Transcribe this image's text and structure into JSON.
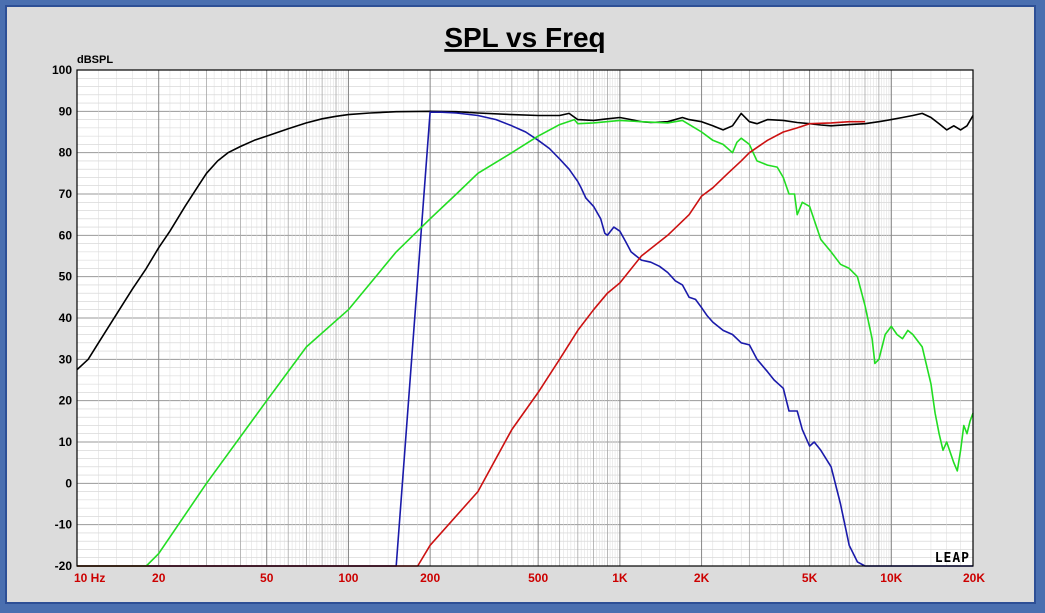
{
  "chart_data": {
    "type": "line",
    "title": "SPL vs Freq",
    "ylabel": "dBSPL",
    "xlabel": "",
    "x_scale": "log",
    "xlim": [
      10,
      20000
    ],
    "ylim": [
      -20,
      100
    ],
    "grid": true,
    "watermark": "LEAP",
    "y_ticks": [
      {
        "value": 100,
        "label": "100"
      },
      {
        "value": 90,
        "label": "90"
      },
      {
        "value": 80,
        "label": "80"
      },
      {
        "value": 70,
        "label": "70"
      },
      {
        "value": 60,
        "label": "60"
      },
      {
        "value": 50,
        "label": "50"
      },
      {
        "value": 40,
        "label": "40"
      },
      {
        "value": 30,
        "label": "30"
      },
      {
        "value": 20,
        "label": "20"
      },
      {
        "value": 10,
        "label": "10"
      },
      {
        "value": 0,
        "label": "0"
      },
      {
        "value": -10,
        "label": "-10"
      },
      {
        "value": -20,
        "label": "-20"
      }
    ],
    "x_ticks": [
      {
        "value": 10,
        "label": "10 Hz"
      },
      {
        "value": 20,
        "label": "20"
      },
      {
        "value": 50,
        "label": "50"
      },
      {
        "value": 100,
        "label": "100"
      },
      {
        "value": 200,
        "label": "200"
      },
      {
        "value": 500,
        "label": "500"
      },
      {
        "value": 1000,
        "label": "1K"
      },
      {
        "value": 2000,
        "label": "2K"
      },
      {
        "value": 5000,
        "label": "5K"
      },
      {
        "value": 10000,
        "label": "10K"
      },
      {
        "value": 20000,
        "label": "20K"
      }
    ],
    "series": [
      {
        "color": "#000000",
        "points": [
          [
            10,
            27.5
          ],
          [
            11,
            30
          ],
          [
            12,
            34
          ],
          [
            14,
            41
          ],
          [
            16,
            47
          ],
          [
            18,
            52
          ],
          [
            20,
            57
          ],
          [
            22,
            61
          ],
          [
            25,
            67
          ],
          [
            28,
            72
          ],
          [
            30,
            75
          ],
          [
            33,
            78
          ],
          [
            36,
            80
          ],
          [
            40,
            81.5
          ],
          [
            45,
            83
          ],
          [
            50,
            84
          ],
          [
            60,
            85.8
          ],
          [
            70,
            87.2
          ],
          [
            80,
            88.2
          ],
          [
            90,
            88.8
          ],
          [
            100,
            89.2
          ],
          [
            120,
            89.6
          ],
          [
            150,
            89.9
          ],
          [
            200,
            90
          ],
          [
            250,
            89.9
          ],
          [
            300,
            89.6
          ],
          [
            400,
            89.2
          ],
          [
            500,
            89
          ],
          [
            600,
            89
          ],
          [
            650,
            89.5
          ],
          [
            700,
            88
          ],
          [
            800,
            87.8
          ],
          [
            900,
            88.2
          ],
          [
            1000,
            88.5
          ],
          [
            1100,
            88
          ],
          [
            1200,
            87.5
          ],
          [
            1300,
            87.3
          ],
          [
            1500,
            87.5
          ],
          [
            1700,
            88.5
          ],
          [
            1800,
            88
          ],
          [
            2000,
            87.5
          ],
          [
            2200,
            86.5
          ],
          [
            2400,
            85.5
          ],
          [
            2600,
            86.5
          ],
          [
            2800,
            89.5
          ],
          [
            3000,
            87.5
          ],
          [
            3200,
            87
          ],
          [
            3500,
            88
          ],
          [
            4000,
            87.8
          ],
          [
            4500,
            87.3
          ],
          [
            5000,
            87
          ],
          [
            5500,
            86.7
          ],
          [
            6000,
            86.5
          ],
          [
            7000,
            86.8
          ],
          [
            8000,
            87
          ],
          [
            9000,
            87.5
          ],
          [
            10000,
            88
          ],
          [
            11000,
            88.5
          ],
          [
            12000,
            89
          ],
          [
            13000,
            89.5
          ],
          [
            14000,
            88.5
          ],
          [
            15000,
            87
          ],
          [
            16000,
            85.5
          ],
          [
            17000,
            86.5
          ],
          [
            18000,
            85.5
          ],
          [
            19000,
            86.5
          ],
          [
            20000,
            89
          ]
        ]
      },
      {
        "color": "#1a1aaa",
        "points": [
          [
            10,
            -20
          ],
          [
            40,
            -20
          ],
          [
            60,
            -20
          ],
          [
            80,
            -20
          ],
          [
            100,
            -20
          ],
          [
            150,
            -20
          ],
          [
            200,
            89.8
          ],
          [
            220,
            89.8
          ],
          [
            250,
            89.6
          ],
          [
            300,
            89
          ],
          [
            350,
            88
          ],
          [
            400,
            86.5
          ],
          [
            450,
            85
          ],
          [
            500,
            83
          ],
          [
            550,
            81
          ],
          [
            600,
            78.5
          ],
          [
            650,
            76
          ],
          [
            700,
            73
          ],
          [
            720,
            71.5
          ],
          [
            750,
            69
          ],
          [
            800,
            67
          ],
          [
            850,
            64
          ],
          [
            880,
            60.5
          ],
          [
            900,
            60
          ],
          [
            950,
            62
          ],
          [
            1000,
            61
          ],
          [
            1050,
            58.5
          ],
          [
            1100,
            56
          ],
          [
            1200,
            54
          ],
          [
            1300,
            53.5
          ],
          [
            1400,
            52.5
          ],
          [
            1500,
            51
          ],
          [
            1600,
            49
          ],
          [
            1700,
            48
          ],
          [
            1800,
            45
          ],
          [
            1900,
            44.5
          ],
          [
            2000,
            42.5
          ],
          [
            2100,
            40.5
          ],
          [
            2200,
            39
          ],
          [
            2400,
            37
          ],
          [
            2600,
            36
          ],
          [
            2800,
            34
          ],
          [
            3000,
            33.5
          ],
          [
            3200,
            30
          ],
          [
            3500,
            27
          ],
          [
            3700,
            25
          ],
          [
            4000,
            23
          ],
          [
            4200,
            17.5
          ],
          [
            4500,
            17.5
          ],
          [
            4700,
            13
          ],
          [
            5000,
            9
          ],
          [
            5200,
            10
          ],
          [
            5500,
            8
          ],
          [
            6000,
            4
          ],
          [
            6500,
            -5
          ],
          [
            7000,
            -15
          ],
          [
            7500,
            -19
          ],
          [
            8000,
            -20
          ],
          [
            20000,
            -20
          ]
        ]
      },
      {
        "color": "#22dd22",
        "points": [
          [
            10,
            -20
          ],
          [
            18,
            -20
          ],
          [
            20,
            -17
          ],
          [
            30,
            0
          ],
          [
            50,
            20
          ],
          [
            70,
            33
          ],
          [
            100,
            42
          ],
          [
            150,
            56
          ],
          [
            200,
            64
          ],
          [
            250,
            70
          ],
          [
            300,
            75
          ],
          [
            400,
            80
          ],
          [
            500,
            84
          ],
          [
            600,
            86.8
          ],
          [
            680,
            88
          ],
          [
            700,
            87
          ],
          [
            800,
            87.2
          ],
          [
            1000,
            87.8
          ],
          [
            1200,
            87.5
          ],
          [
            1500,
            87.2
          ],
          [
            1700,
            87.8
          ],
          [
            2000,
            85
          ],
          [
            2200,
            83
          ],
          [
            2400,
            82
          ],
          [
            2600,
            80
          ],
          [
            2700,
            82.5
          ],
          [
            2800,
            83.5
          ],
          [
            3000,
            82
          ],
          [
            3200,
            78
          ],
          [
            3500,
            77
          ],
          [
            3800,
            76.5
          ],
          [
            4000,
            74
          ],
          [
            4200,
            70
          ],
          [
            4400,
            70
          ],
          [
            4500,
            65
          ],
          [
            4700,
            68
          ],
          [
            5000,
            67
          ],
          [
            5500,
            59
          ],
          [
            6000,
            56
          ],
          [
            6500,
            53
          ],
          [
            7000,
            52
          ],
          [
            7500,
            50
          ],
          [
            8000,
            43
          ],
          [
            8500,
            35
          ],
          [
            8700,
            29
          ],
          [
            9000,
            30
          ],
          [
            9500,
            36
          ],
          [
            10000,
            38
          ],
          [
            10500,
            36
          ],
          [
            11000,
            35
          ],
          [
            11500,
            37
          ],
          [
            12000,
            36
          ],
          [
            13000,
            33
          ],
          [
            14000,
            24
          ],
          [
            14500,
            17
          ],
          [
            15000,
            12
          ],
          [
            15500,
            8
          ],
          [
            16000,
            10
          ],
          [
            17000,
            5
          ],
          [
            17500,
            3
          ],
          [
            18000,
            8
          ],
          [
            18500,
            14
          ],
          [
            19000,
            12
          ],
          [
            19500,
            15
          ],
          [
            20000,
            17
          ]
        ]
      },
      {
        "color": "#cc1111",
        "points": [
          [
            10,
            -20
          ],
          [
            100,
            -20
          ],
          [
            150,
            -20
          ],
          [
            180,
            -20
          ],
          [
            200,
            -15
          ],
          [
            300,
            -2
          ],
          [
            400,
            13
          ],
          [
            500,
            22
          ],
          [
            600,
            30
          ],
          [
            700,
            37
          ],
          [
            800,
            42
          ],
          [
            900,
            46
          ],
          [
            1000,
            48.5
          ],
          [
            1200,
            55
          ],
          [
            1500,
            60
          ],
          [
            1800,
            65
          ],
          [
            2000,
            69.5
          ],
          [
            2200,
            71.5
          ],
          [
            2500,
            75
          ],
          [
            2800,
            78
          ],
          [
            3000,
            80
          ],
          [
            3500,
            83
          ],
          [
            4000,
            85
          ],
          [
            4500,
            86
          ],
          [
            5000,
            87
          ],
          [
            6000,
            87.2
          ],
          [
            7000,
            87.5
          ],
          [
            8000,
            87.5
          ]
        ]
      }
    ]
  }
}
